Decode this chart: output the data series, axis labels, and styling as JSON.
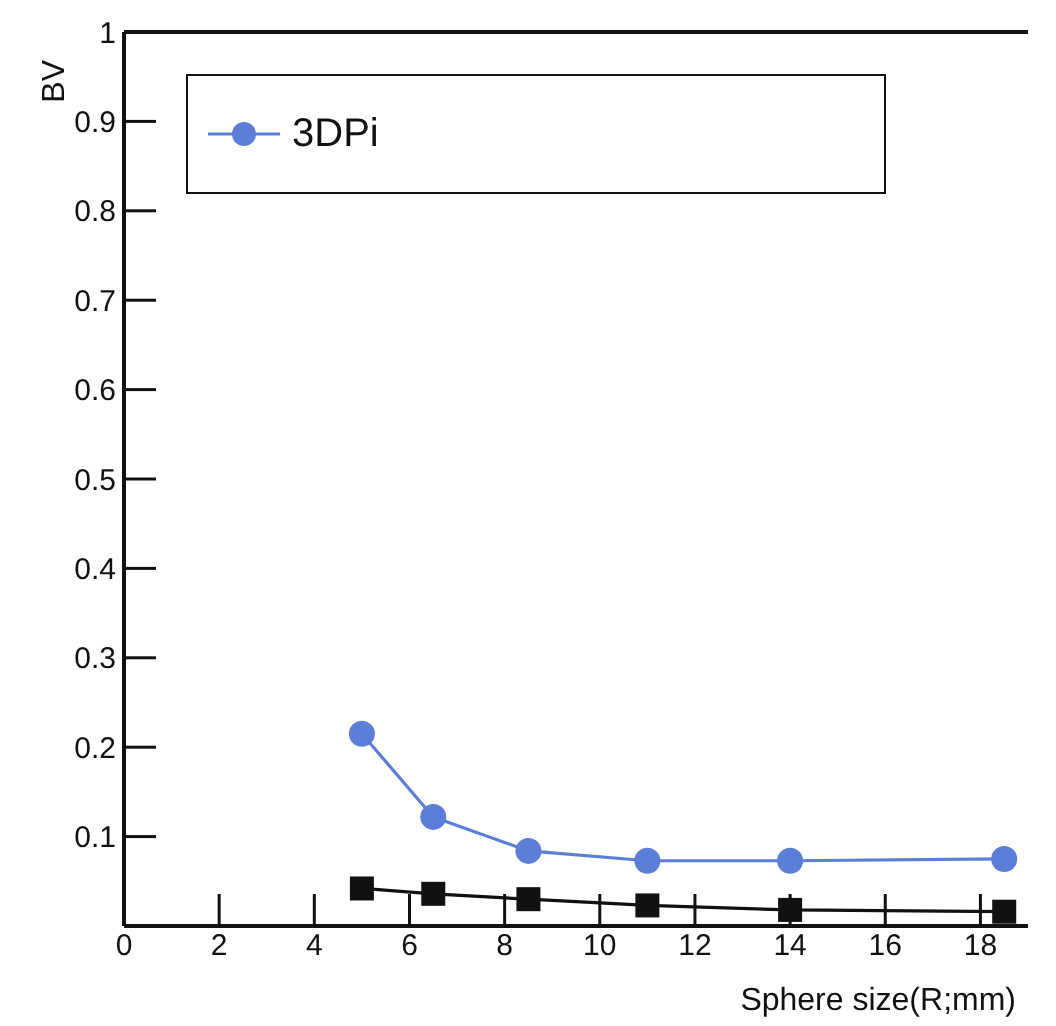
{
  "chart_data": {
    "type": "line",
    "xlabel": "Sphere size(R;mm)",
    "ylabel": "BV",
    "x": [
      5,
      6.5,
      8.5,
      11,
      14,
      18.5
    ],
    "series": [
      {
        "name": "3DPi",
        "color": "#5b7fd6",
        "marker": "circle",
        "values": [
          0.215,
          0.122,
          0.084,
          0.073,
          0.073,
          0.075
        ]
      },
      {
        "color": "#111111",
        "marker": "square",
        "values": [
          0.042,
          0.036,
          0.03,
          0.023,
          0.018,
          0.016
        ]
      }
    ],
    "xlim": [
      0,
      19
    ],
    "xticks": [
      0,
      2,
      4,
      6,
      8,
      10,
      12,
      14,
      16,
      18
    ],
    "ylim": [
      0,
      1
    ],
    "yticks": [
      0.1,
      0.2,
      0.3,
      0.4,
      0.5,
      0.6,
      0.7,
      0.8,
      0.9,
      1
    ],
    "grid": false,
    "legend": "top left",
    "line_style": "solid"
  }
}
